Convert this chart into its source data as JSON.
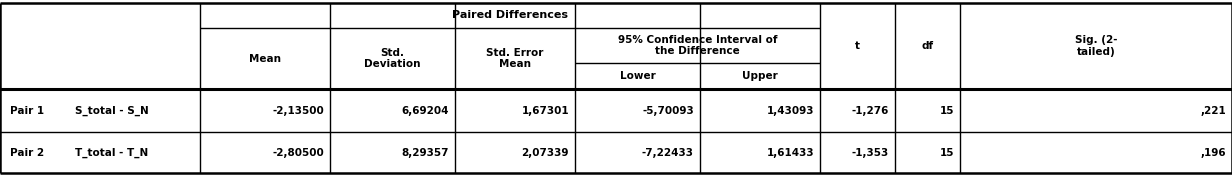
{
  "title_row": "Paired Differences",
  "col_headers": {
    "mean": "Mean",
    "std_dev": "Std.\nDeviation",
    "std_err": "Std. Error\nMean",
    "ci_header": "95% Confidence Interval of\nthe Difference",
    "lower": "Lower",
    "upper": "Upper",
    "t": "t",
    "df": "df",
    "sig": "Sig. (2-\ntailed)"
  },
  "rows": [
    {
      "pair": "Pair 1",
      "label": "S_total - S_N",
      "mean": "-2,13500",
      "std_dev": "6,69204",
      "std_err": "1,67301",
      "lower": "-5,70093",
      "upper": "1,43093",
      "t": "-1,276",
      "df": "15",
      "sig": ",221"
    },
    {
      "pair": "Pair 2",
      "label": "T_total - T_N",
      "mean": "-2,80500",
      "std_dev": "8,29357",
      "std_err": "2,07339",
      "lower": "-7,22433",
      "upper": "1,61433",
      "t": "-1,353",
      "df": "15",
      "sig": ",196"
    }
  ],
  "bg_color": "#FFFFFF",
  "line_color": "#000000",
  "font_size": 7.5
}
